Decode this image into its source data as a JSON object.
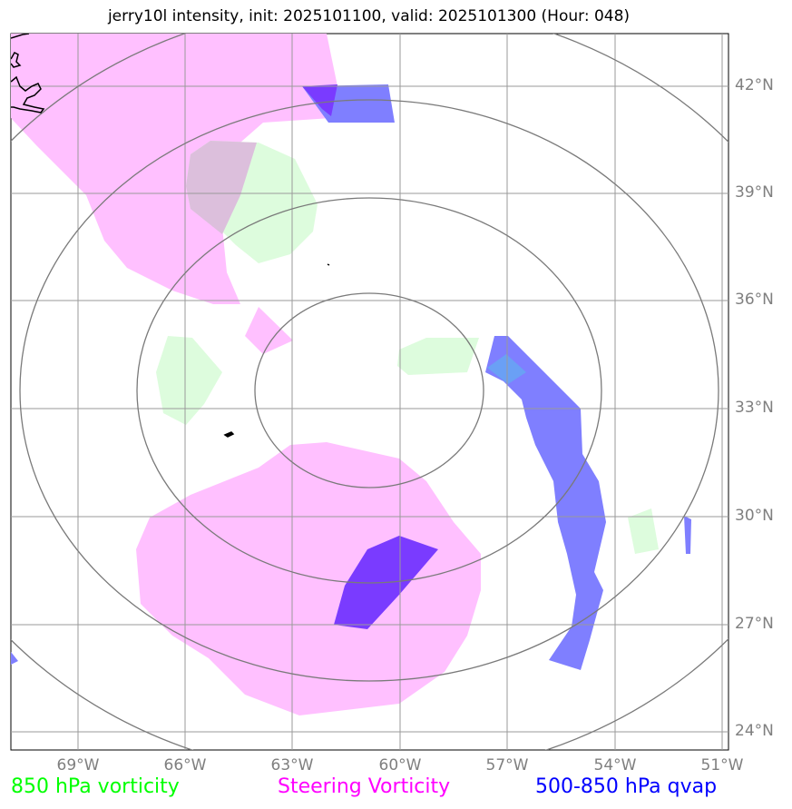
{
  "title": "jerry10l intensity, init: 2025101100, valid: 2025101300 (Hour: 048)",
  "lat_labels": [
    "42°N",
    "39°N",
    "36°N",
    "33°N",
    "30°N",
    "27°N",
    "24°N"
  ],
  "lon_labels": [
    "69°W",
    "66°W",
    "63°W",
    "60°W",
    "57°W",
    "54°W",
    "51°W"
  ],
  "legend": [
    {
      "label": "850 hPa vorticity",
      "color": "#00ff00"
    },
    {
      "label": "Steering Vorticity",
      "color": "#ff00ff"
    },
    {
      "label": "500-850 hPa qvap",
      "color": "#0000ff"
    }
  ],
  "colors": {
    "vorticity_850_fill": "#ddfcdd",
    "steering_fill": "#ffc0ff",
    "qvap_fill": "#7f7fff",
    "qvap_overlap_fill": "#7a3bff",
    "grid": "#9a9a9a",
    "range_rings": "#7a7a7a"
  }
}
